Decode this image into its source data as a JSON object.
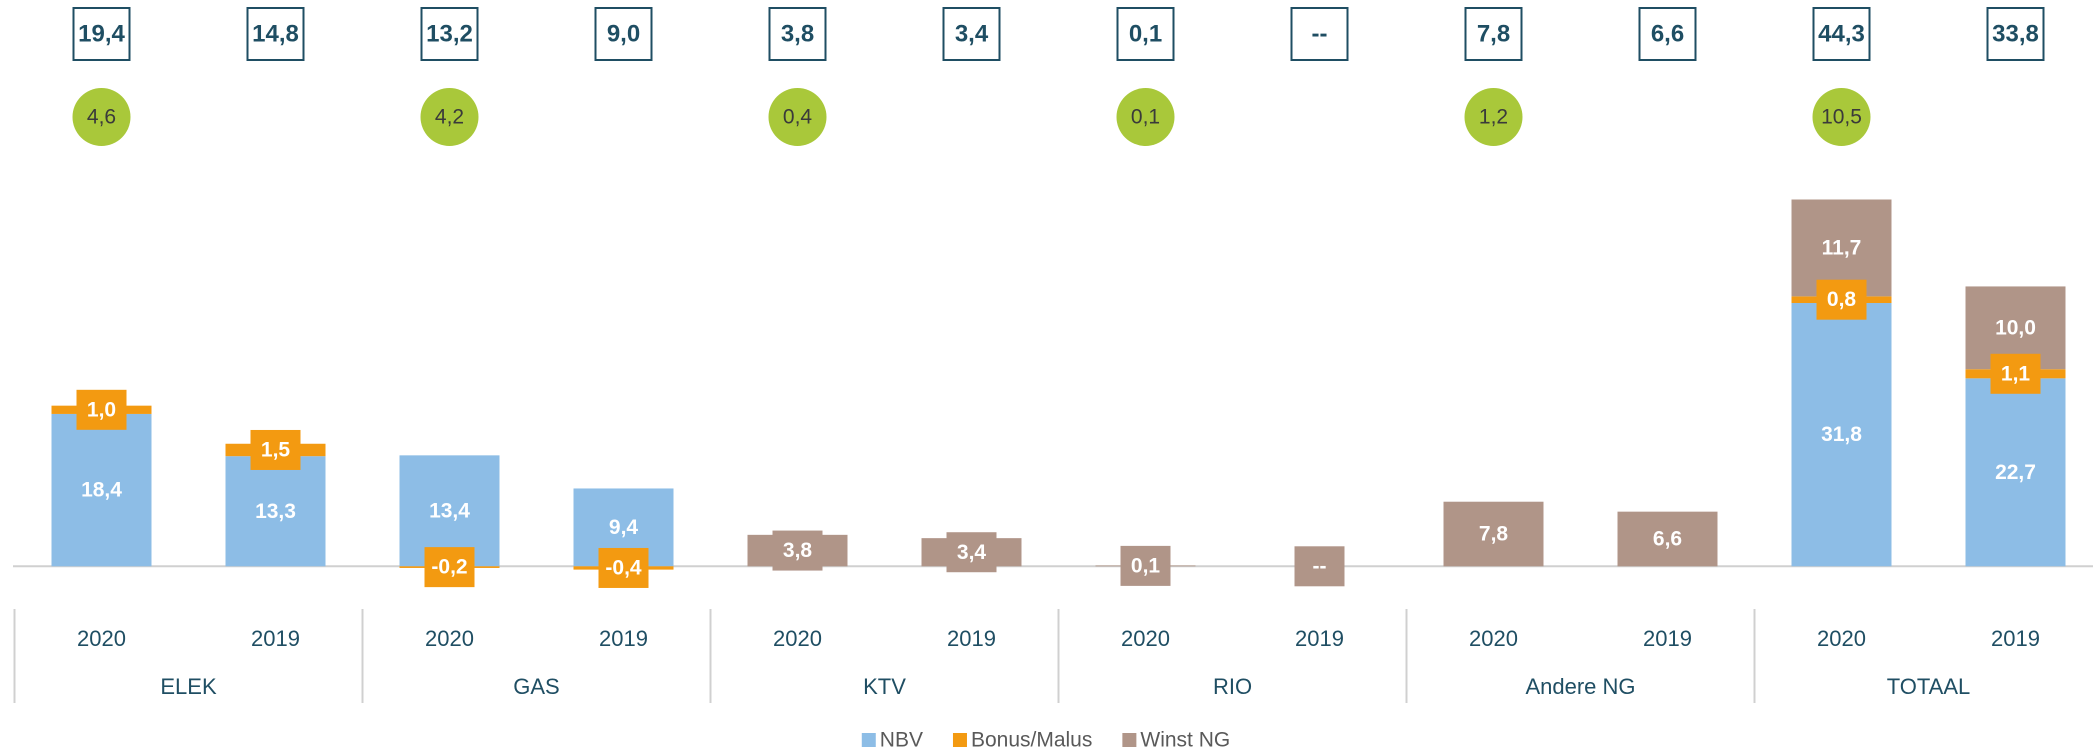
{
  "chart_data": {
    "type": "bar",
    "stacked": true,
    "categories": [
      "2020",
      "2019",
      "2020",
      "2019",
      "2020",
      "2019",
      "2020",
      "2019",
      "2020",
      "2019",
      "2020",
      "2019"
    ],
    "groups": [
      "ELEK",
      "GAS",
      "KTV",
      "RIO",
      "Andere NG",
      "TOTAAL"
    ],
    "ylim": [
      -2.5,
      47.5
    ],
    "series": [
      {
        "name": "NBV",
        "color": "#8dbde6",
        "values": [
          18.4,
          13.3,
          13.4,
          9.4,
          null,
          null,
          null,
          null,
          null,
          null,
          31.8,
          22.7
        ],
        "value_labels": [
          "18,4",
          "13,3",
          "13,4",
          "9,4",
          null,
          null,
          null,
          null,
          null,
          null,
          "31,8",
          "22,7"
        ]
      },
      {
        "name": "Bonus/Malus",
        "color": "#f39a11",
        "values": [
          1.0,
          1.5,
          -0.2,
          -0.4,
          null,
          null,
          null,
          null,
          null,
          null,
          0.8,
          1.1
        ],
        "value_labels": [
          "1,0",
          "1,5",
          "-0,2",
          "-0,4",
          null,
          null,
          null,
          null,
          null,
          null,
          "0,8",
          "1,1"
        ]
      },
      {
        "name": "Winst NG",
        "color": "#b09588",
        "values": [
          null,
          null,
          null,
          null,
          3.8,
          3.4,
          0.1,
          null,
          7.8,
          6.6,
          11.7,
          10.0
        ],
        "value_labels": [
          null,
          null,
          null,
          null,
          "3,8",
          "3,4",
          "0,1",
          "--",
          "7,8",
          "6,6",
          "11,7",
          "10,0"
        ]
      }
    ],
    "totals": {
      "values": [
        19.4,
        14.8,
        13.2,
        9.0,
        3.8,
        3.4,
        0.1,
        null,
        7.8,
        6.6,
        44.3,
        33.8
      ],
      "value_labels": [
        "19,4",
        "14,8",
        "13,2",
        "9,0",
        "3,8",
        "3,4",
        "0,1",
        "--",
        "7,8",
        "6,6",
        "44,3",
        "33,8"
      ]
    },
    "differences": {
      "color": "#a9c83a",
      "values": [
        4.6,
        null,
        4.2,
        null,
        0.4,
        null,
        0.1,
        null,
        1.2,
        null,
        10.5,
        null
      ],
      "value_labels": [
        "4,6",
        null,
        "4,2",
        null,
        "0,4",
        null,
        "0,1",
        null,
        "1,2",
        null,
        "10,5",
        null
      ]
    },
    "legend": "bottom"
  }
}
